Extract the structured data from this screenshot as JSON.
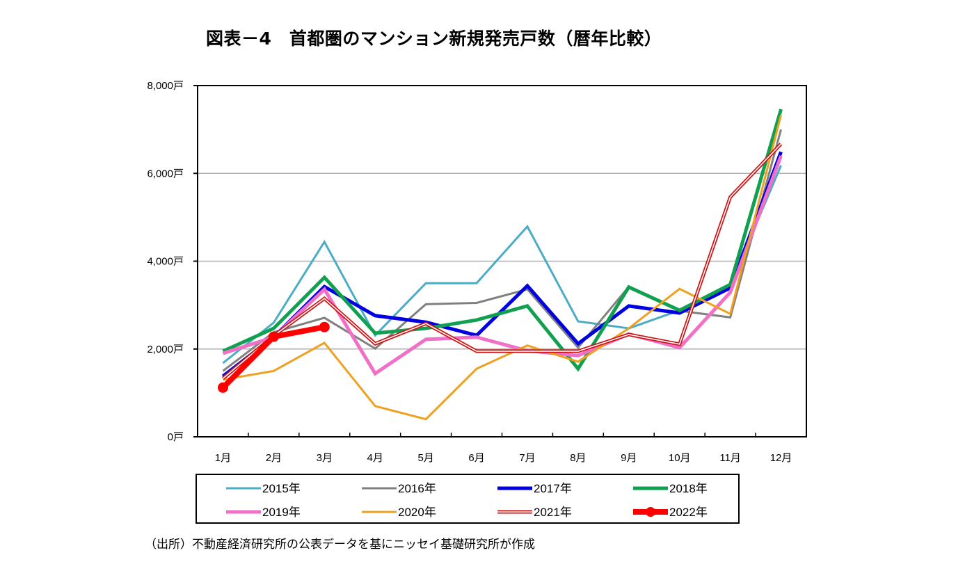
{
  "title": "図表－4　首都圏のマンション新規発売戸数（暦年比較）",
  "source": "（出所）不動産経済研究所の公表データを基にニッセイ基礎研究所が作成",
  "chart_data": {
    "type": "line",
    "title": "図表－4　首都圏のマンション新規発売戸数（暦年比較）",
    "xlabel": "",
    "ylabel": "",
    "categories": [
      "1月",
      "2月",
      "3月",
      "4月",
      "5月",
      "6月",
      "7月",
      "8月",
      "9月",
      "10月",
      "11月",
      "12月"
    ],
    "ylim": [
      0,
      8000
    ],
    "yticks": [
      0,
      2000,
      4000,
      6000,
      8000
    ],
    "ytick_labels": [
      "0戸",
      "2,000戸",
      "4,000戸",
      "6,000戸",
      "8,000戸"
    ],
    "grid": true,
    "legend_position": "bottom",
    "series": [
      {
        "name": "2015年",
        "color": "#4BACC6",
        "style": "thin",
        "values": [
          1680,
          2600,
          4440,
          2310,
          3500,
          3500,
          4790,
          2630,
          2470,
          2880,
          3450,
          6180
        ]
      },
      {
        "name": "2016年",
        "color": "#808080",
        "style": "thin",
        "values": [
          1500,
          2380,
          2710,
          2010,
          3020,
          3050,
          3360,
          2030,
          3420,
          2870,
          2720,
          7000
        ]
      },
      {
        "name": "2017年",
        "color": "#0000E0",
        "style": "thick",
        "values": [
          1380,
          2270,
          3420,
          2760,
          2610,
          2310,
          3440,
          2120,
          2980,
          2820,
          3390,
          6490
        ]
      },
      {
        "name": "2018年",
        "color": "#11A050",
        "style": "thick",
        "values": [
          1950,
          2470,
          3630,
          2360,
          2470,
          2660,
          2980,
          1550,
          3410,
          2880,
          3470,
          7460
        ]
      },
      {
        "name": "2019年",
        "color": "#F070C8",
        "style": "thick",
        "values": [
          1900,
          2270,
          3360,
          1440,
          2220,
          2270,
          1960,
          1850,
          2340,
          2030,
          3290,
          6400
        ]
      },
      {
        "name": "2020年",
        "color": "#F0A020",
        "style": "thin",
        "values": [
          1300,
          1500,
          2140,
          700,
          400,
          1550,
          2080,
          1710,
          2470,
          3370,
          2800,
          7330
        ]
      },
      {
        "name": "2021年",
        "color": "#D01010",
        "style": "double",
        "values": [
          1330,
          2300,
          3150,
          2120,
          2580,
          1950,
          1950,
          1950,
          2330,
          2110,
          5460,
          6670
        ]
      },
      {
        "name": "2022年",
        "color": "#FF0000",
        "style": "marker",
        "values": [
          1120,
          2280,
          2500
        ]
      }
    ]
  }
}
